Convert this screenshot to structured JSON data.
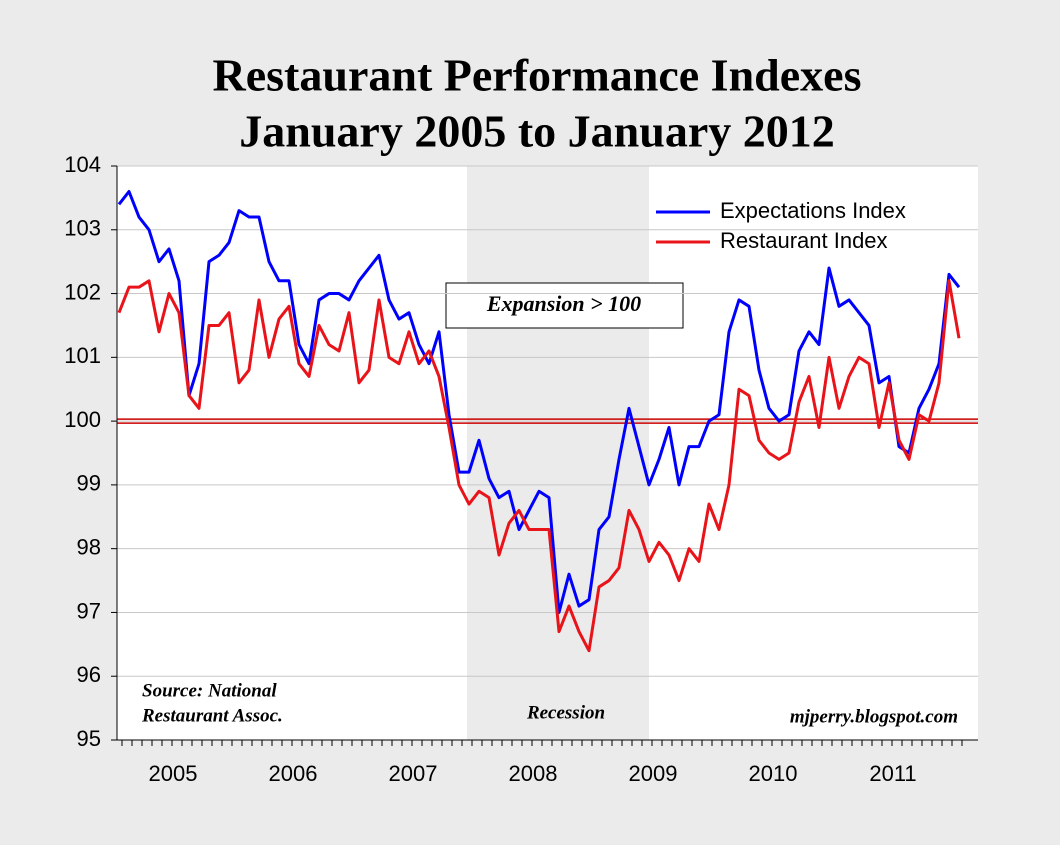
{
  "chart_data": {
    "type": "line",
    "title": "Restaurant Performance Indexes",
    "subtitle": "January 2005 to January 2012",
    "categories": [
      null,
      null,
      null,
      null,
      null,
      null,
      "2005",
      null,
      null,
      null,
      null,
      null,
      null,
      null,
      null,
      null,
      null,
      null,
      "2006",
      null,
      null,
      null,
      null,
      null,
      null,
      null,
      null,
      null,
      null,
      null,
      "2007",
      null,
      null,
      null,
      null,
      null,
      null,
      null,
      null,
      null,
      null,
      null,
      "2008",
      null,
      null,
      null,
      null,
      null,
      null,
      null,
      null,
      null,
      null,
      null,
      "2009",
      null,
      null,
      null,
      null,
      null,
      null,
      null,
      null,
      null,
      null,
      null,
      "2010",
      null,
      null,
      null,
      null,
      null,
      null,
      null,
      null,
      null,
      null,
      null,
      "2011",
      null,
      null,
      null,
      null,
      null,
      null
    ],
    "series": [
      {
        "name": "Expectations Index",
        "color": "#0000ff",
        "values": [
          103.4,
          103.6,
          103.2,
          103.0,
          102.5,
          102.7,
          102.2,
          100.4,
          100.9,
          102.5,
          102.6,
          102.8,
          103.3,
          103.2,
          103.2,
          102.5,
          102.2,
          102.2,
          101.2,
          100.9,
          101.9,
          102.0,
          102.0,
          101.9,
          102.2,
          102.4,
          102.6,
          101.9,
          101.6,
          101.7,
          101.2,
          100.9,
          101.4,
          100.1,
          99.2,
          99.2,
          99.7,
          99.1,
          98.8,
          98.9,
          98.3,
          98.6,
          98.9,
          98.8,
          97.0,
          97.6,
          97.1,
          97.2,
          98.3,
          98.5,
          99.4,
          100.2,
          99.6,
          99.0,
          99.4,
          99.9,
          99.0,
          99.6,
          99.6,
          100.0,
          100.1,
          101.4,
          101.9,
          101.8,
          100.8,
          100.2,
          100.0,
          100.1,
          101.1,
          101.4,
          101.2,
          102.4,
          101.8,
          101.9,
          101.7,
          101.5,
          100.6,
          100.7,
          99.6,
          99.5,
          100.2,
          100.5,
          100.9,
          102.3,
          102.1
        ]
      },
      {
        "name": "Restaurant Index",
        "color": "#e8141a",
        "values": [
          101.7,
          102.1,
          102.1,
          102.2,
          101.4,
          102.0,
          101.7,
          100.4,
          100.2,
          101.5,
          101.5,
          101.7,
          100.6,
          100.8,
          101.9,
          101.0,
          101.6,
          101.8,
          100.9,
          100.7,
          101.5,
          101.2,
          101.1,
          101.7,
          100.6,
          100.8,
          101.9,
          101.0,
          100.9,
          101.4,
          100.9,
          101.1,
          100.7,
          99.9,
          99.0,
          98.7,
          98.9,
          98.8,
          97.9,
          98.4,
          98.6,
          98.3,
          98.3,
          98.3,
          96.7,
          97.1,
          96.7,
          96.4,
          97.4,
          97.5,
          97.7,
          98.6,
          98.3,
          97.8,
          98.1,
          97.9,
          97.5,
          98.0,
          97.8,
          98.7,
          98.3,
          99.0,
          100.5,
          100.4,
          99.7,
          99.5,
          99.4,
          99.5,
          100.3,
          100.7,
          99.9,
          101.0,
          100.2,
          100.7,
          101.0,
          100.9,
          99.9,
          100.6,
          99.7,
          99.4,
          100.1,
          100.0,
          100.6,
          102.2,
          101.3
        ]
      }
    ],
    "ylim": [
      95,
      104
    ],
    "yticks": [
      95,
      96,
      97,
      98,
      99,
      100,
      101,
      102,
      103,
      104
    ],
    "grid": true,
    "legend": "upper right",
    "annotations": [
      "Expansion > 100",
      "Recession",
      "mjperry.blogspot.com"
    ],
    "source": [
      "Source: National",
      "Restaurant Assoc."
    ]
  }
}
